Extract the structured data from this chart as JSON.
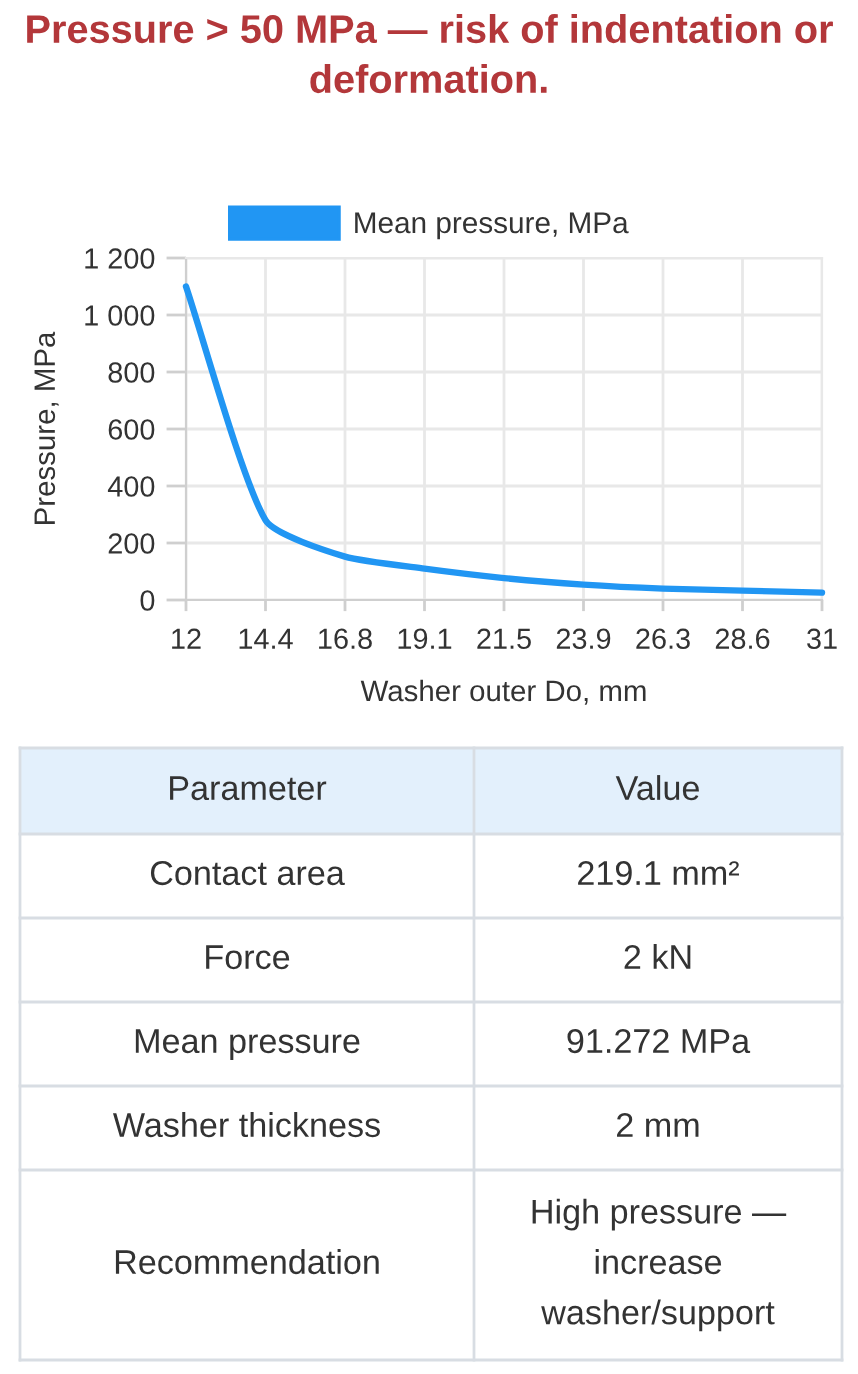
{
  "chart_data": {
    "type": "line",
    "title": "Pressure > 50 MPa — risk of indentation or deformation.",
    "xlabel": "Washer outer Do, mm",
    "ylabel": "Pressure, MPa",
    "categories": [
      "12",
      "14.4",
      "16.8",
      "19.1",
      "21.5",
      "23.9",
      "26.3",
      "28.6",
      "31"
    ],
    "series": [
      {
        "name": "Mean pressure, MPa",
        "color": "#2196f3",
        "values": [
          1100,
          280,
          152,
          110,
          77,
          54,
          40,
          33,
          26
        ]
      }
    ],
    "ylim": [
      0,
      1200
    ],
    "yticks": [
      0,
      200,
      400,
      600,
      800,
      {
        "value": 1000,
        "label": "1 000"
      },
      {
        "value": 1200,
        "label": "1 200"
      }
    ],
    "grid": true,
    "legend": "top",
    "annotations": [
      "Parameter",
      "Value",
      "Contact area",
      "219.1 mm²",
      "Force",
      "2 kN",
      "Mean pressure",
      "91.272 MPa",
      "Washer thickness",
      "2 mm",
      "Recommendation",
      "High pressure — increase washer/support"
    ]
  }
}
